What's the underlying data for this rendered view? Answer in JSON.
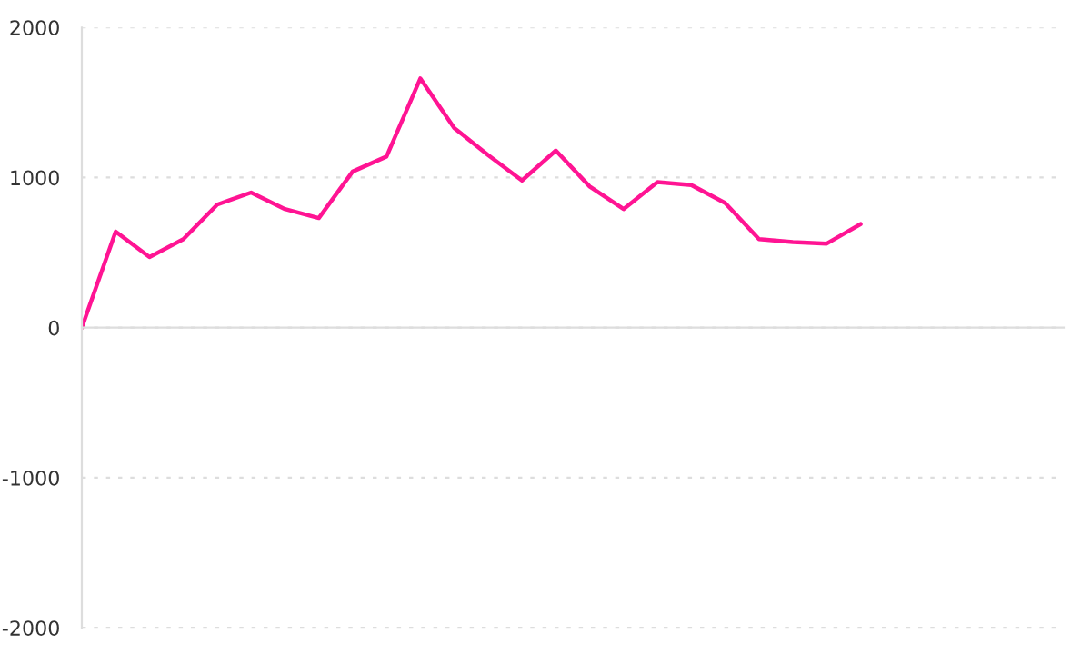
{
  "chart_data": {
    "type": "line",
    "categories": [
      null,
      null,
      null,
      null,
      null,
      null,
      null,
      null,
      null,
      null,
      null,
      null,
      null,
      null,
      null,
      null,
      null,
      null,
      null,
      null,
      null,
      null,
      null,
      null,
      null,
      null,
      null,
      null,
      null,
      null
    ],
    "series": [
      {
        "color": "#ff1493",
        "values": [
          0,
          640,
          470,
          590,
          820,
          900,
          790,
          730,
          1040,
          1140,
          1660,
          1330,
          1150,
          980,
          1180,
          940,
          790,
          970,
          950,
          830,
          590,
          570,
          560,
          690,
          null,
          null,
          null,
          null,
          null,
          null
        ]
      }
    ],
    "ylim": [
      -2000,
      2000
    ],
    "yticks": [
      -2000,
      -1000,
      0,
      1000,
      2000
    ],
    "tick_labels": "y",
    "grid": "y",
    "marker": "none",
    "line_style": "solid",
    "legend": false
  }
}
